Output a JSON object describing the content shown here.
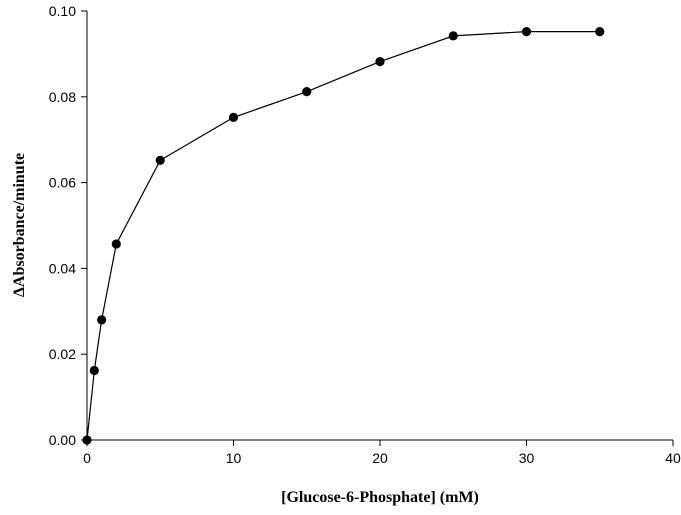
{
  "chart_data": {
    "type": "line",
    "title": "",
    "xlabel": "[Glucose-6-Phosphate] (mM)",
    "ylabel": "ΔAbsorbance/minute",
    "xlim": [
      0,
      40
    ],
    "ylim": [
      0,
      0.1
    ],
    "xticks": [
      "0",
      "10",
      "20",
      "30",
      "40"
    ],
    "yticks": [
      "0.00",
      "0.02",
      "0.04",
      "0.06",
      "0.08",
      "0.10"
    ],
    "grid": false,
    "legend": "none",
    "series": [
      {
        "x": [
          0,
          0.5,
          1,
          2,
          5,
          10,
          15,
          20,
          25,
          30,
          35
        ],
        "y": [
          0,
          0.0162,
          0.028,
          0.0457,
          0.0652,
          0.0752,
          0.0812,
          0.0882,
          0.0942,
          0.0952,
          0.0952
        ],
        "color": "#000000",
        "marker": "filled-circle"
      }
    ]
  }
}
